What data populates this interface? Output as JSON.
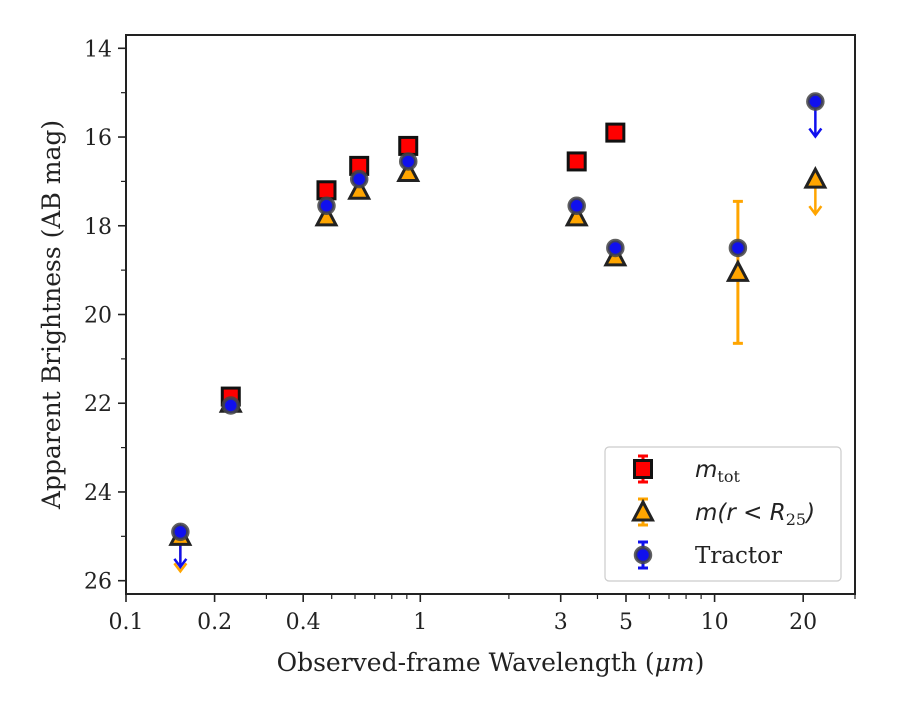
{
  "chart_data": {
    "type": "scatter",
    "xlabel": "Observed-frame Wavelength (",
    "xlabel_unit": "μm",
    "xlabel_close": ")",
    "ylabel": "Apparent Brightness (AB mag)",
    "xscale": "log",
    "yinverted": true,
    "xlim": [
      0.1,
      30
    ],
    "ylim": [
      26.3,
      13.7
    ],
    "grid": false,
    "legend_position": "lower-right",
    "x_ticks": [
      {
        "value": 0.1,
        "label": "0.1"
      },
      {
        "value": 0.2,
        "label": "0.2"
      },
      {
        "value": 0.4,
        "label": "0.4"
      },
      {
        "value": 1,
        "label": "1"
      },
      {
        "value": 3,
        "label": "3"
      },
      {
        "value": 5,
        "label": "5"
      },
      {
        "value": 10,
        "label": "10"
      },
      {
        "value": 20,
        "label": "20"
      }
    ],
    "x_minor_ticks": [
      0.3,
      0.5,
      0.6,
      0.7,
      0.8,
      0.9,
      2,
      4,
      6,
      7,
      8,
      9,
      30
    ],
    "y_ticks": [
      {
        "value": 14,
        "label": "14"
      },
      {
        "value": 16,
        "label": "16"
      },
      {
        "value": 18,
        "label": "18"
      },
      {
        "value": 20,
        "label": "20"
      },
      {
        "value": 22,
        "label": "22"
      },
      {
        "value": 24,
        "label": "24"
      },
      {
        "value": 26,
        "label": "26"
      }
    ],
    "y_minor_ticks": [
      15,
      17,
      19,
      21,
      23,
      25
    ],
    "series": [
      {
        "key": "mtot",
        "legend_italic": "m",
        "legend_sub": "tot",
        "marker": "square",
        "color": "#ff0000",
        "edge": "#111111",
        "points": [
          {
            "x": 0.227,
            "y": 21.85
          },
          {
            "x": 0.48,
            "y": 17.2
          },
          {
            "x": 0.62,
            "y": 16.65
          },
          {
            "x": 0.91,
            "y": 16.2
          },
          {
            "x": 3.4,
            "y": 16.55
          },
          {
            "x": 4.6,
            "y": 15.9
          }
        ]
      },
      {
        "key": "mr25",
        "legend_italic": "m",
        "legend_rest": "(r < R",
        "legend_sub": "25",
        "legend_close": ")",
        "marker": "triangle",
        "color": "#ffa500",
        "edge": "#222222",
        "points": [
          {
            "x": 0.153,
            "y": 25.0,
            "upper_limit": true
          },
          {
            "x": 0.227,
            "y": 22.0
          },
          {
            "x": 0.48,
            "y": 17.8
          },
          {
            "x": 0.62,
            "y": 17.2
          },
          {
            "x": 0.91,
            "y": 16.8
          },
          {
            "x": 3.4,
            "y": 17.8
          },
          {
            "x": 4.6,
            "y": 18.7
          },
          {
            "x": 12.0,
            "y": 19.05,
            "yerr": [
              17.45,
              20.65
            ]
          },
          {
            "x": 22.0,
            "y": 16.95,
            "upper_limit": true
          }
        ]
      },
      {
        "key": "tractor",
        "legend_label": "Tractor",
        "marker": "circle",
        "color": "#1010ee",
        "edge": "#444444",
        "points": [
          {
            "x": 0.153,
            "y": 24.9,
            "upper_limit": true
          },
          {
            "x": 0.227,
            "y": 22.05
          },
          {
            "x": 0.48,
            "y": 17.55
          },
          {
            "x": 0.62,
            "y": 16.95
          },
          {
            "x": 0.91,
            "y": 16.55
          },
          {
            "x": 3.4,
            "y": 17.55
          },
          {
            "x": 4.6,
            "y": 18.5
          },
          {
            "x": 12.0,
            "y": 18.5
          },
          {
            "x": 22.0,
            "y": 15.2,
            "upper_limit": true
          }
        ]
      }
    ]
  }
}
